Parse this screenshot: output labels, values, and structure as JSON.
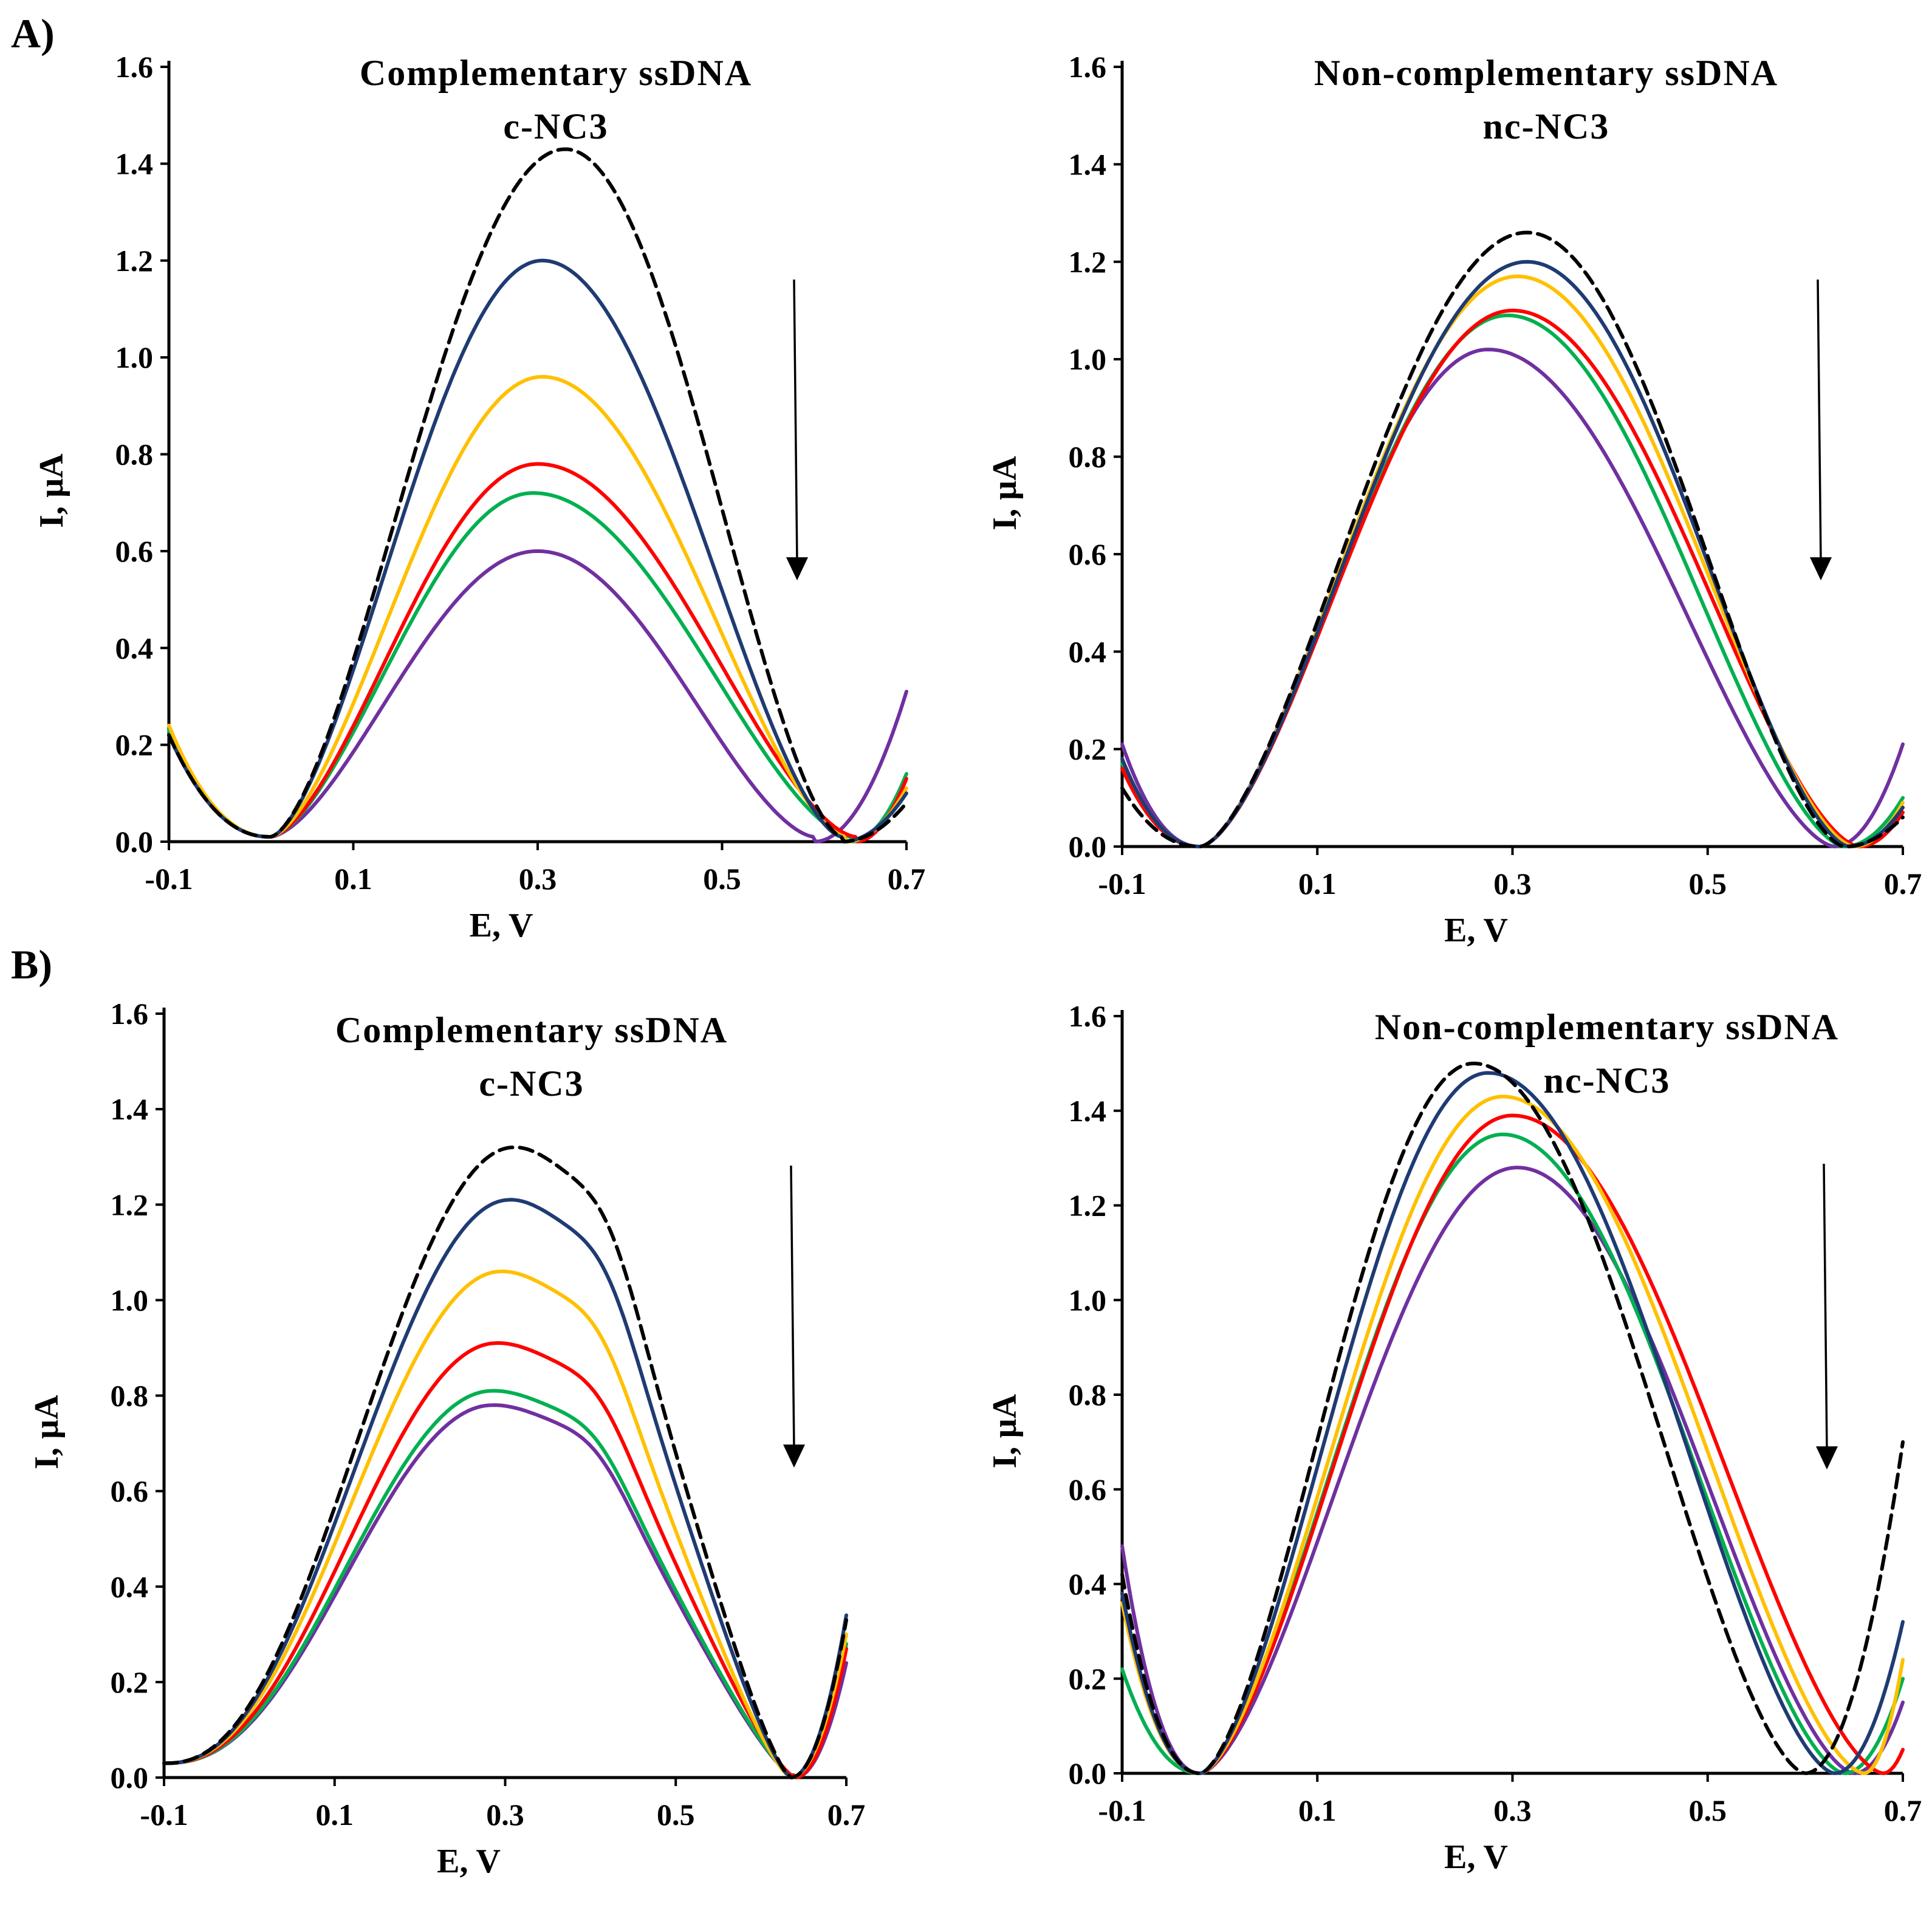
{
  "panel_labels": [
    "A)",
    "B)"
  ],
  "colors": {
    "dashed": "#000000",
    "navy": "#1f3b73",
    "yellow": "#ffc000",
    "red": "#ff0000",
    "green": "#00b050",
    "purple": "#7030a0"
  },
  "chart_data": [
    {
      "type": "line",
      "panel": "A)",
      "title": "Complementary ssDNA",
      "subtitle": "c-NC3",
      "xlabel": "E, V",
      "ylabel": "I, µA",
      "xlim": [
        -0.1,
        0.7
      ],
      "ylim": [
        0.0,
        1.6
      ],
      "xticks": [
        "-0.1",
        "0.1",
        "0.3",
        "0.5",
        "0.7"
      ],
      "yticks": [
        "0.0",
        "0.2",
        "0.4",
        "0.6",
        "0.8",
        "1.0",
        "1.2",
        "1.4",
        "1.6"
      ],
      "legend": "none",
      "annotation": "downward arrow (decreasing current)",
      "series": [
        {
          "name": "baseline (dashed)",
          "color_key": "dashed",
          "dashed": true,
          "start": 0.22,
          "min_x": 0.01,
          "min_y": 0.01,
          "peak_x": 0.33,
          "peak_y": 1.43,
          "end_min_x": 0.63,
          "end_y": 0.08
        },
        {
          "name": "curve 1",
          "color_key": "navy",
          "start": 0.22,
          "min_x": 0.01,
          "min_y": 0.01,
          "peak_x": 0.305,
          "peak_y": 1.2,
          "end_min_x": 0.63,
          "end_y": 0.1
        },
        {
          "name": "curve 2",
          "color_key": "yellow",
          "start": 0.24,
          "min_x": 0.01,
          "min_y": 0.01,
          "peak_x": 0.305,
          "peak_y": 0.96,
          "end_min_x": 0.635,
          "end_y": 0.11
        },
        {
          "name": "curve 3",
          "color_key": "red",
          "start": 0.22,
          "min_x": 0.01,
          "min_y": 0.01,
          "peak_x": 0.3,
          "peak_y": 0.78,
          "end_min_x": 0.645,
          "end_y": 0.13
        },
        {
          "name": "curve 4",
          "color_key": "green",
          "start": 0.23,
          "min_x": 0.01,
          "min_y": 0.01,
          "peak_x": 0.295,
          "peak_y": 0.72,
          "end_min_x": 0.64,
          "end_y": 0.14
        },
        {
          "name": "curve 5",
          "color_key": "purple",
          "start": 0.22,
          "min_x": 0.01,
          "min_y": 0.01,
          "peak_x": 0.3,
          "peak_y": 0.6,
          "end_min_x": 0.6,
          "end_y": 0.31
        }
      ]
    },
    {
      "type": "line",
      "panel": "A)",
      "title": "Non-complementary ssDNA",
      "subtitle": "nc-NC3",
      "xlabel": "E, V",
      "ylabel": "I, µA",
      "xlim": [
        -0.1,
        0.7
      ],
      "ylim": [
        0.0,
        1.6
      ],
      "xticks": [
        "-0.1",
        "0.1",
        "0.3",
        "0.5",
        "0.7"
      ],
      "yticks": [
        "0.0",
        "0.2",
        "0.4",
        "0.6",
        "0.8",
        "1.0",
        "1.2",
        "1.4",
        "1.6"
      ],
      "legend": "none",
      "annotation": "downward arrow (decreasing current)",
      "series": [
        {
          "name": "baseline (dashed)",
          "color_key": "dashed",
          "dashed": true,
          "start": 0.12,
          "min_x": -0.02,
          "min_y": 0.0,
          "peak_x": 0.315,
          "peak_y": 1.26,
          "end_min_x": 0.64,
          "end_y": 0.06
        },
        {
          "name": "curve 1",
          "color_key": "navy",
          "start": 0.18,
          "min_x": -0.02,
          "min_y": 0.0,
          "peak_x": 0.315,
          "peak_y": 1.2,
          "end_min_x": 0.645,
          "end_y": 0.08
        },
        {
          "name": "curve 2",
          "color_key": "yellow",
          "start": 0.18,
          "min_x": -0.02,
          "min_y": 0.0,
          "peak_x": 0.305,
          "peak_y": 1.17,
          "end_min_x": 0.65,
          "end_y": 0.09
        },
        {
          "name": "curve 3",
          "color_key": "red",
          "start": 0.16,
          "min_x": -0.02,
          "min_y": 0.0,
          "peak_x": 0.3,
          "peak_y": 1.1,
          "end_min_x": 0.655,
          "end_y": 0.07
        },
        {
          "name": "curve 4",
          "color_key": "green",
          "start": 0.17,
          "min_x": -0.02,
          "min_y": 0.0,
          "peak_x": 0.295,
          "peak_y": 1.09,
          "end_min_x": 0.64,
          "end_y": 0.1
        },
        {
          "name": "curve 5",
          "color_key": "purple",
          "start": 0.21,
          "min_x": -0.02,
          "min_y": 0.0,
          "peak_x": 0.275,
          "peak_y": 1.02,
          "end_min_x": 0.63,
          "end_y": 0.21
        }
      ]
    },
    {
      "type": "line",
      "panel": "B)",
      "title": "Complementary ssDNA",
      "subtitle": "c-NC3",
      "xlabel": "E, V",
      "ylabel": "I, µA",
      "xlim": [
        -0.1,
        0.7
      ],
      "ylim": [
        0.0,
        1.6
      ],
      "xticks": [
        "-0.1",
        "0.1",
        "0.3",
        "0.5",
        "0.7"
      ],
      "yticks": [
        "0.0",
        "0.2",
        "0.4",
        "0.6",
        "0.8",
        "1.0",
        "1.2",
        "1.4",
        "1.6"
      ],
      "legend": "none",
      "annotation": "downward arrow (decreasing current)",
      "series": [
        {
          "name": "baseline (dashed)",
          "color_key": "dashed",
          "dashed": true,
          "start": 0.03,
          "peak_x": 0.31,
          "peak_y": 1.32,
          "end_min_x": 0.635,
          "end_y": 0.33
        },
        {
          "name": "curve 1",
          "color_key": "navy",
          "start": 0.03,
          "peak_x": 0.305,
          "peak_y": 1.21,
          "end_min_x": 0.635,
          "end_y": 0.34
        },
        {
          "name": "curve 2",
          "color_key": "yellow",
          "start": 0.03,
          "peak_x": 0.295,
          "peak_y": 1.06,
          "end_min_x": 0.635,
          "end_y": 0.3
        },
        {
          "name": "curve 3",
          "color_key": "red",
          "start": 0.03,
          "peak_x": 0.29,
          "peak_y": 0.91,
          "end_min_x": 0.64,
          "end_y": 0.27
        },
        {
          "name": "curve 4",
          "color_key": "green",
          "start": 0.03,
          "peak_x": 0.285,
          "peak_y": 0.81,
          "end_min_x": 0.64,
          "end_y": 0.28
        },
        {
          "name": "curve 5",
          "color_key": "purple",
          "start": 0.03,
          "peak_x": 0.285,
          "peak_y": 0.78,
          "end_min_x": 0.64,
          "end_y": 0.24
        }
      ]
    },
    {
      "type": "line",
      "panel": "B)",
      "title": "Non-complementary ssDNA",
      "subtitle": "nc-NC3",
      "xlabel": "E, V",
      "ylabel": "I, µA",
      "xlim": [
        -0.1,
        0.7
      ],
      "ylim": [
        0.0,
        1.6
      ],
      "xticks": [
        "-0.1",
        "0.1",
        "0.3",
        "0.5",
        "0.7"
      ],
      "yticks": [
        "0.0",
        "0.2",
        "0.4",
        "0.6",
        "0.8",
        "1.0",
        "1.2",
        "1.4",
        "1.6"
      ],
      "legend": "none",
      "annotation": "downward arrow (decreasing current)",
      "series": [
        {
          "name": "baseline (dashed)",
          "color_key": "dashed",
          "dashed": true,
          "start": 0.42,
          "min_x": -0.02,
          "min_y": 0.0,
          "peak_x": 0.26,
          "peak_y": 1.5,
          "end_min_x": 0.6,
          "end_y": 0.7
        },
        {
          "name": "curve 1",
          "color_key": "navy",
          "start": 0.38,
          "min_x": -0.02,
          "min_y": 0.0,
          "peak_x": 0.275,
          "peak_y": 1.48,
          "end_min_x": 0.63,
          "end_y": 0.32
        },
        {
          "name": "curve 2",
          "color_key": "yellow",
          "start": 0.36,
          "min_x": -0.02,
          "min_y": 0.0,
          "peak_x": 0.29,
          "peak_y": 1.43,
          "end_min_x": 0.66,
          "end_y": 0.24
        },
        {
          "name": "curve 3",
          "color_key": "red",
          "start": 0.38,
          "min_x": -0.02,
          "min_y": 0.0,
          "peak_x": 0.3,
          "peak_y": 1.39,
          "end_min_x": 0.68,
          "end_y": 0.05
        },
        {
          "name": "curve 4",
          "color_key": "green",
          "start": 0.22,
          "min_x": -0.02,
          "min_y": 0.0,
          "peak_x": 0.29,
          "peak_y": 1.35,
          "end_min_x": 0.64,
          "end_y": 0.2
        },
        {
          "name": "curve 5",
          "color_key": "purple",
          "start": 0.48,
          "min_x": -0.02,
          "min_y": 0.0,
          "peak_x": 0.305,
          "peak_y": 1.28,
          "end_min_x": 0.65,
          "end_y": 0.15
        }
      ]
    }
  ]
}
